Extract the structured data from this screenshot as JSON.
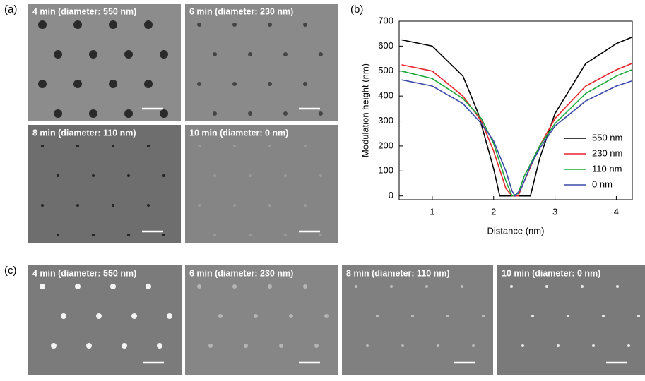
{
  "panels": {
    "a": {
      "label": "(a)",
      "images": [
        "4 min (diameter: 550 nm)",
        "6 min (diameter: 230 nm)",
        "8 min (diameter: 110 nm)",
        "10 min (diameter: 0 nm)"
      ]
    },
    "b": {
      "label": "(b)"
    },
    "c": {
      "label": "(c)",
      "images": [
        "4 min (diameter: 550 nm)",
        "6 min (diameter: 230 nm)",
        "8 min (diameter: 110 nm)",
        "10 min (diameter: 0 nm)"
      ]
    }
  },
  "chart_data": {
    "type": "line",
    "x_label": "Distance (nm)",
    "y_label": "Modulation height (nm)",
    "xlim": [
      0.46,
      4.26
    ],
    "xticks": [
      1,
      2,
      3,
      4
    ],
    "ylim": [
      -15,
      700
    ],
    "yticks": [
      0,
      100,
      200,
      300,
      400,
      500,
      600,
      700
    ],
    "legend": "lower right",
    "series": [
      {
        "name": "550 nm",
        "color": "#000000",
        "x": [
          0.5,
          1,
          1.5,
          1.75,
          2,
          2.1,
          2.6,
          2.75,
          3,
          3.5,
          4,
          4.25
        ],
        "values": [
          625,
          600,
          480,
          330,
          110,
          0,
          0,
          150,
          330,
          530,
          610,
          635
        ]
      },
      {
        "name": "230 nm",
        "color": "#e8242b",
        "x": [
          0.5,
          1,
          1.5,
          1.8,
          2,
          2.2,
          2.3,
          2.4,
          2.5,
          2.75,
          3,
          3.5,
          4,
          4.25
        ],
        "values": [
          525,
          500,
          400,
          300,
          180,
          30,
          0,
          0,
          60,
          200,
          310,
          440,
          505,
          530
        ]
      },
      {
        "name": "110 nm",
        "color": "#1ca83a",
        "x": [
          0.5,
          1,
          1.5,
          1.8,
          2,
          2.2,
          2.3,
          2.4,
          2.5,
          2.75,
          3,
          3.5,
          4,
          4.25
        ],
        "values": [
          500,
          470,
          390,
          310,
          210,
          60,
          0,
          10,
          80,
          200,
          290,
          410,
          480,
          505
        ]
      },
      {
        "name": "0 nm",
        "color": "#3b4aa8",
        "x": [
          0.5,
          1,
          1.5,
          1.8,
          2,
          2.2,
          2.3,
          2.35,
          2.45,
          2.6,
          2.75,
          3,
          3.5,
          4,
          4.25
        ],
        "values": [
          465,
          440,
          370,
          290,
          220,
          100,
          20,
          0,
          30,
          120,
          190,
          280,
          380,
          440,
          460
        ]
      }
    ]
  }
}
